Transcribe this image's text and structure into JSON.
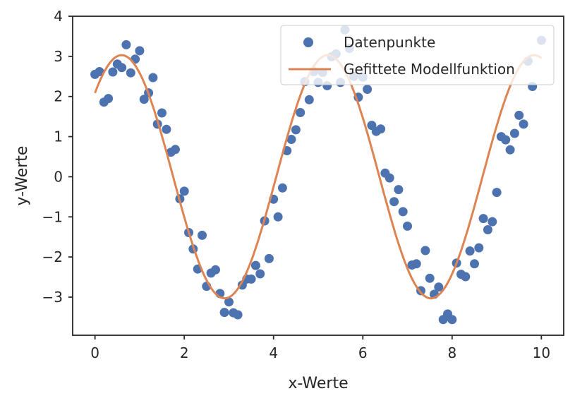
{
  "chart_data": {
    "type": "scatter",
    "xlabel": "x-Werte",
    "ylabel": "y-Werte",
    "xlim": [
      -0.5,
      10.5
    ],
    "ylim": [
      -3.95,
      4.0
    ],
    "xticks": [
      0,
      2,
      4,
      6,
      8,
      10
    ],
    "yticks": [
      -3,
      -2,
      -1,
      0,
      1,
      2,
      3,
      4
    ],
    "xtick_labels": [
      "0",
      "2",
      "4",
      "6",
      "8",
      "10"
    ],
    "ytick_labels": [
      "−3",
      "−2",
      "−1",
      "0",
      "1",
      "2",
      "3",
      "4"
    ],
    "grid": false,
    "legend_position": "top-right",
    "series": [
      {
        "name": "Datenpunkte",
        "kind": "scatter",
        "color": "#4C72B0",
        "points": [
          [
            0.0,
            2.55
          ],
          [
            0.1,
            2.62
          ],
          [
            0.2,
            1.86
          ],
          [
            0.3,
            1.95
          ],
          [
            0.4,
            2.61
          ],
          [
            0.5,
            2.81
          ],
          [
            0.6,
            2.72
          ],
          [
            0.7,
            3.29
          ],
          [
            0.8,
            2.59
          ],
          [
            0.9,
            2.93
          ],
          [
            1.0,
            3.14
          ],
          [
            1.1,
            1.93
          ],
          [
            1.2,
            2.09
          ],
          [
            1.3,
            2.47
          ],
          [
            1.4,
            1.31
          ],
          [
            1.5,
            1.59
          ],
          [
            1.6,
            1.18
          ],
          [
            1.7,
            0.61
          ],
          [
            1.8,
            0.68
          ],
          [
            1.9,
            -0.55
          ],
          [
            2.0,
            -0.36
          ],
          [
            2.1,
            -1.39
          ],
          [
            2.2,
            -1.8
          ],
          [
            2.3,
            -2.3
          ],
          [
            2.4,
            -1.46
          ],
          [
            2.5,
            -2.73
          ],
          [
            2.6,
            -2.4
          ],
          [
            2.7,
            -2.32
          ],
          [
            2.8,
            -2.91
          ],
          [
            2.9,
            -3.38
          ],
          [
            3.0,
            -3.12
          ],
          [
            3.1,
            -3.39
          ],
          [
            3.2,
            -3.44
          ],
          [
            3.3,
            -2.7
          ],
          [
            3.4,
            -2.55
          ],
          [
            3.5,
            -2.55
          ],
          [
            3.6,
            -2.21
          ],
          [
            3.7,
            -2.42
          ],
          [
            3.8,
            -1.1
          ],
          [
            3.9,
            -2.04
          ],
          [
            4.0,
            -0.56
          ],
          [
            4.1,
            -1.0
          ],
          [
            4.2,
            -0.28
          ],
          [
            4.3,
            0.65
          ],
          [
            4.4,
            0.93
          ],
          [
            4.5,
            1.17
          ],
          [
            4.6,
            1.6
          ],
          [
            4.7,
            2.37
          ],
          [
            4.8,
            1.92
          ],
          [
            4.9,
            2.62
          ],
          [
            5.0,
            2.35
          ],
          [
            5.1,
            2.6
          ],
          [
            5.2,
            2.27
          ],
          [
            5.3,
            2.99
          ],
          [
            5.4,
            3.06
          ],
          [
            5.5,
            2.35
          ],
          [
            5.6,
            3.66
          ],
          [
            5.7,
            3.2
          ],
          [
            5.8,
            2.5
          ],
          [
            5.9,
            1.98
          ],
          [
            6.0,
            2.48
          ],
          [
            6.1,
            2.18
          ],
          [
            6.2,
            1.28
          ],
          [
            6.3,
            1.13
          ],
          [
            6.4,
            1.19
          ],
          [
            6.5,
            0.09
          ],
          [
            6.6,
            -0.03
          ],
          [
            6.7,
            -0.62
          ],
          [
            6.8,
            -0.32
          ],
          [
            6.9,
            -0.87
          ],
          [
            7.0,
            -1.23
          ],
          [
            7.1,
            -2.2
          ],
          [
            7.2,
            -2.17
          ],
          [
            7.3,
            -2.84
          ],
          [
            7.4,
            -1.84
          ],
          [
            7.5,
            -2.53
          ],
          [
            7.6,
            -2.93
          ],
          [
            7.7,
            -2.75
          ],
          [
            7.8,
            -3.56
          ],
          [
            7.9,
            -3.42
          ],
          [
            8.0,
            -3.56
          ],
          [
            8.1,
            -2.15
          ],
          [
            8.2,
            -2.43
          ],
          [
            8.3,
            -2.49
          ],
          [
            8.4,
            -1.85
          ],
          [
            8.5,
            -2.17
          ],
          [
            8.6,
            -1.77
          ],
          [
            8.7,
            -1.04
          ],
          [
            8.8,
            -1.32
          ],
          [
            8.9,
            -1.12
          ],
          [
            9.0,
            -0.39
          ],
          [
            9.1,
            1.0
          ],
          [
            9.2,
            0.92
          ],
          [
            9.3,
            0.67
          ],
          [
            9.4,
            1.08
          ],
          [
            9.5,
            1.53
          ],
          [
            9.6,
            1.31
          ],
          [
            9.7,
            2.88
          ],
          [
            9.8,
            2.25
          ],
          [
            10.0,
            3.4
          ]
        ]
      },
      {
        "name": "Gefittete Modellfunktion",
        "kind": "line",
        "color": "#DD8452",
        "model": {
          "amplitude": 3.03,
          "omega": 1.36,
          "phase": 0.76,
          "offset": 0.0
        }
      }
    ]
  }
}
